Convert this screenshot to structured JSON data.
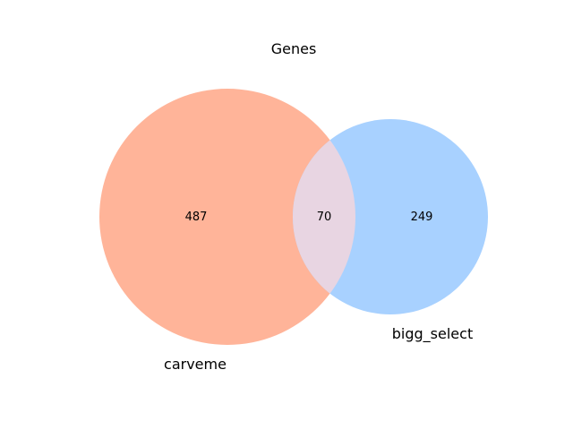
{
  "title": "Genes",
  "sets": [
    {
      "name": "carveme",
      "only_count": "487",
      "color": "#ffb499"
    },
    {
      "name": "bigg_select",
      "only_count": "249",
      "color": "#a8d1ff"
    }
  ],
  "intersection": {
    "count": "70",
    "color": "#e8d5e2"
  }
}
